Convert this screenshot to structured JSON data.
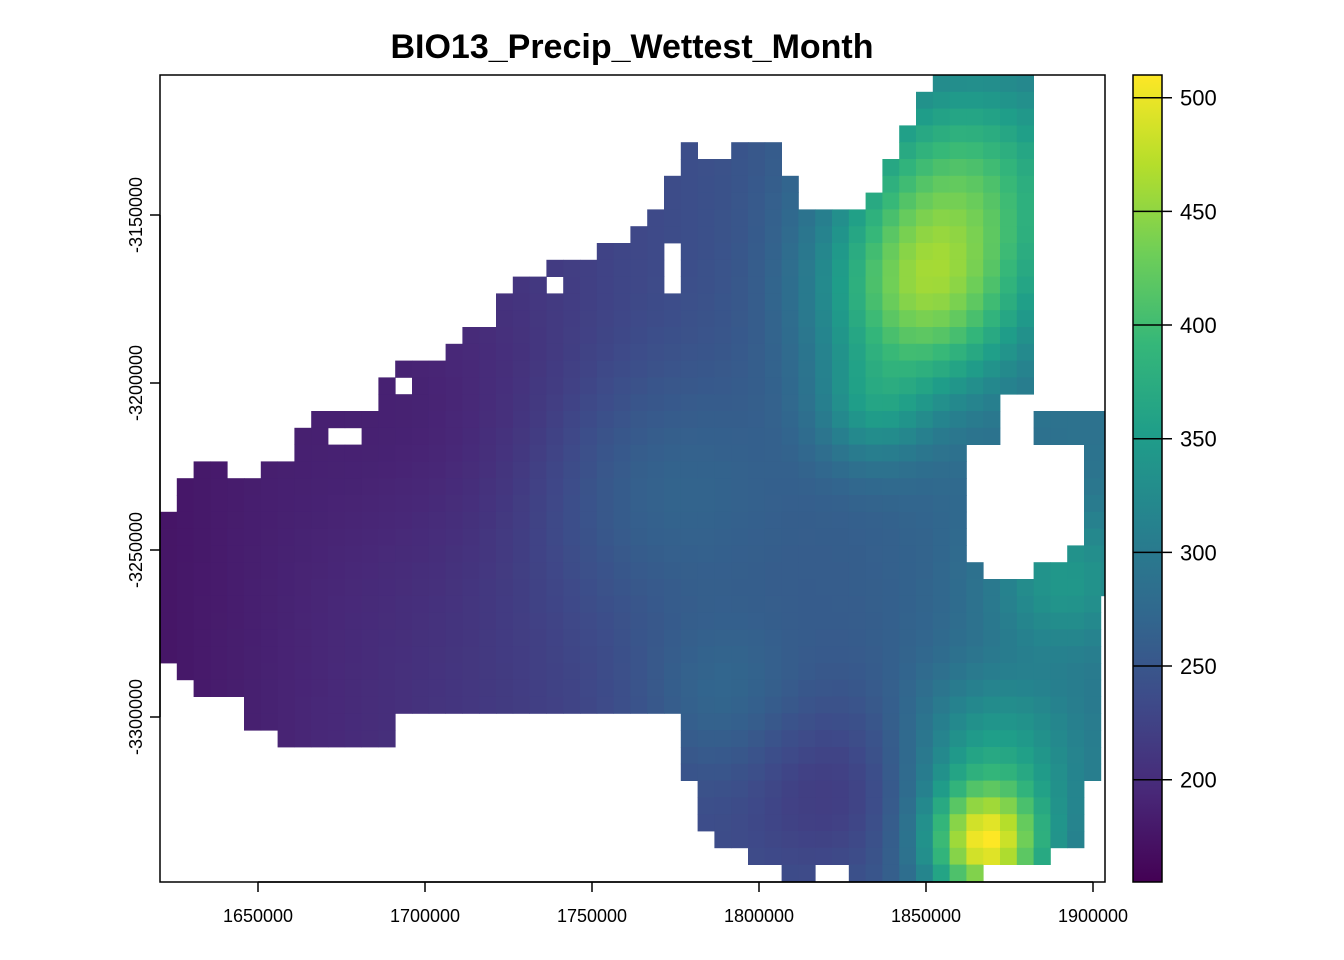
{
  "title": "BIO13_Precip_Wettest_Month",
  "map": {
    "type": "raster",
    "x_ticks": [
      "1650000",
      "1700000",
      "1750000",
      "1800000",
      "1850000",
      "1900000"
    ],
    "y_ticks": [
      "-3150000",
      "-3200000",
      "-3250000",
      "-3300000"
    ],
    "colorbar": {
      "ticks": [
        "200",
        "250",
        "300",
        "350",
        "400",
        "450",
        "500"
      ],
      "min": 155,
      "max": 510,
      "palette": [
        "#440154",
        "#482878",
        "#3e4a89",
        "#31688e",
        "#26828e",
        "#1f9e89",
        "#35b779",
        "#6ece58",
        "#b5de2b",
        "#fde725"
      ]
    }
  }
}
